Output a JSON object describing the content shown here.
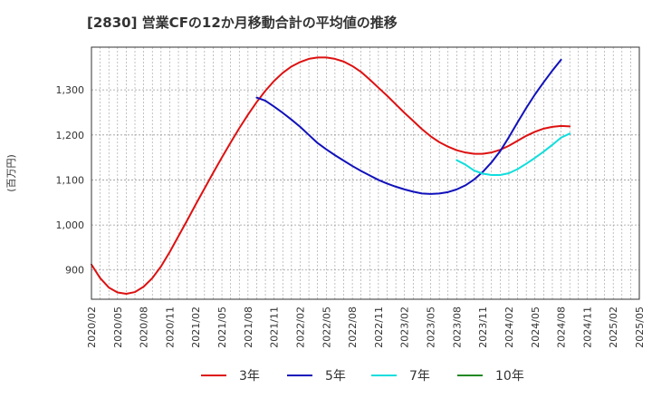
{
  "chart_data": {
    "type": "line",
    "title": "[2830]  営業CFの12か月移動合計の平均値の推移",
    "ylabel": "(百万円)",
    "xlabel": "",
    "ylim": [
      835,
      1395
    ],
    "y_ticks": [
      900,
      1000,
      1100,
      1200,
      1300
    ],
    "y_tick_labels": [
      "900",
      "1,000",
      "1,100",
      "1,200",
      "1,300"
    ],
    "x_range": [
      "2020-02",
      "2025-05"
    ],
    "x_tick_labels": [
      "2020/02",
      "2020/05",
      "2020/08",
      "2020/11",
      "2021/02",
      "2021/05",
      "2021/08",
      "2021/11",
      "2022/02",
      "2022/05",
      "2022/08",
      "2022/11",
      "2023/02",
      "2023/05",
      "2023/08",
      "2023/11",
      "2024/02",
      "2024/05",
      "2024/08",
      "2024/11",
      "2025/02",
      "2025/05"
    ],
    "grid": true,
    "legend_position": "bottom",
    "series": [
      {
        "name": "3年",
        "color": "#dd1111",
        "points": [
          [
            "2020-02",
            912
          ],
          [
            "2020-03",
            882
          ],
          [
            "2020-04",
            861
          ],
          [
            "2020-05",
            850
          ],
          [
            "2020-06",
            847
          ],
          [
            "2020-07",
            851
          ],
          [
            "2020-08",
            863
          ],
          [
            "2020-09",
            882
          ],
          [
            "2020-10",
            908
          ],
          [
            "2020-11",
            940
          ],
          [
            "2020-12",
            975
          ],
          [
            "2021-01",
            1010
          ],
          [
            "2021-02",
            1046
          ],
          [
            "2021-03",
            1081
          ],
          [
            "2021-04",
            1116
          ],
          [
            "2021-05",
            1150
          ],
          [
            "2021-06",
            1183
          ],
          [
            "2021-07",
            1215
          ],
          [
            "2021-08",
            1245
          ],
          [
            "2021-09",
            1273
          ],
          [
            "2021-10",
            1298
          ],
          [
            "2021-11",
            1320
          ],
          [
            "2021-12",
            1338
          ],
          [
            "2022-01",
            1352
          ],
          [
            "2022-02",
            1362
          ],
          [
            "2022-03",
            1369
          ],
          [
            "2022-04",
            1372
          ],
          [
            "2022-05",
            1372
          ],
          [
            "2022-06",
            1369
          ],
          [
            "2022-07",
            1363
          ],
          [
            "2022-08",
            1353
          ],
          [
            "2022-09",
            1340
          ],
          [
            "2022-10",
            1323
          ],
          [
            "2022-11",
            1305
          ],
          [
            "2022-12",
            1287
          ],
          [
            "2023-01",
            1268
          ],
          [
            "2023-02",
            1249
          ],
          [
            "2023-03",
            1231
          ],
          [
            "2023-04",
            1213
          ],
          [
            "2023-05",
            1197
          ],
          [
            "2023-06",
            1184
          ],
          [
            "2023-07",
            1174
          ],
          [
            "2023-08",
            1166
          ],
          [
            "2023-09",
            1161
          ],
          [
            "2023-10",
            1158
          ],
          [
            "2023-11",
            1158
          ],
          [
            "2023-12",
            1161
          ],
          [
            "2024-01",
            1167
          ],
          [
            "2024-02",
            1176
          ],
          [
            "2024-03",
            1187
          ],
          [
            "2024-04",
            1198
          ],
          [
            "2024-05",
            1207
          ],
          [
            "2024-06",
            1214
          ],
          [
            "2024-07",
            1218
          ],
          [
            "2024-08",
            1220
          ],
          [
            "2024-09",
            1219
          ]
        ]
      },
      {
        "name": "5年",
        "color": "#1111bb",
        "points": [
          [
            "2021-09",
            1283
          ],
          [
            "2021-10",
            1276
          ],
          [
            "2021-11",
            1263
          ],
          [
            "2021-12",
            1249
          ],
          [
            "2022-01",
            1234
          ],
          [
            "2022-02",
            1218
          ],
          [
            "2022-03",
            1200
          ],
          [
            "2022-04",
            1182
          ],
          [
            "2022-05",
            1168
          ],
          [
            "2022-06",
            1155
          ],
          [
            "2022-07",
            1143
          ],
          [
            "2022-08",
            1131
          ],
          [
            "2022-09",
            1120
          ],
          [
            "2022-10",
            1110
          ],
          [
            "2022-11",
            1100
          ],
          [
            "2022-12",
            1092
          ],
          [
            "2023-01",
            1085
          ],
          [
            "2023-02",
            1079
          ],
          [
            "2023-03",
            1074
          ],
          [
            "2023-04",
            1070
          ],
          [
            "2023-05",
            1069
          ],
          [
            "2023-06",
            1070
          ],
          [
            "2023-07",
            1073
          ],
          [
            "2023-08",
            1079
          ],
          [
            "2023-09",
            1088
          ],
          [
            "2023-10",
            1101
          ],
          [
            "2023-11",
            1118
          ],
          [
            "2023-12",
            1139
          ],
          [
            "2024-01",
            1164
          ],
          [
            "2024-02",
            1195
          ],
          [
            "2024-03",
            1228
          ],
          [
            "2024-04",
            1260
          ],
          [
            "2024-05",
            1290
          ],
          [
            "2024-06",
            1317
          ],
          [
            "2024-07",
            1343
          ],
          [
            "2024-08",
            1367
          ]
        ]
      },
      {
        "name": "7年",
        "color": "#11dddd",
        "points": [
          [
            "2023-08",
            1144
          ],
          [
            "2023-09",
            1134
          ],
          [
            "2023-10",
            1121
          ],
          [
            "2023-11",
            1114
          ],
          [
            "2023-12",
            1111
          ],
          [
            "2024-01",
            1111
          ],
          [
            "2024-02",
            1115
          ],
          [
            "2024-03",
            1124
          ],
          [
            "2024-04",
            1136
          ],
          [
            "2024-05",
            1149
          ],
          [
            "2024-06",
            1163
          ],
          [
            "2024-07",
            1178
          ],
          [
            "2024-08",
            1194
          ],
          [
            "2024-09",
            1203
          ]
        ]
      },
      {
        "name": "10年",
        "color": "#228822",
        "points": []
      }
    ]
  }
}
